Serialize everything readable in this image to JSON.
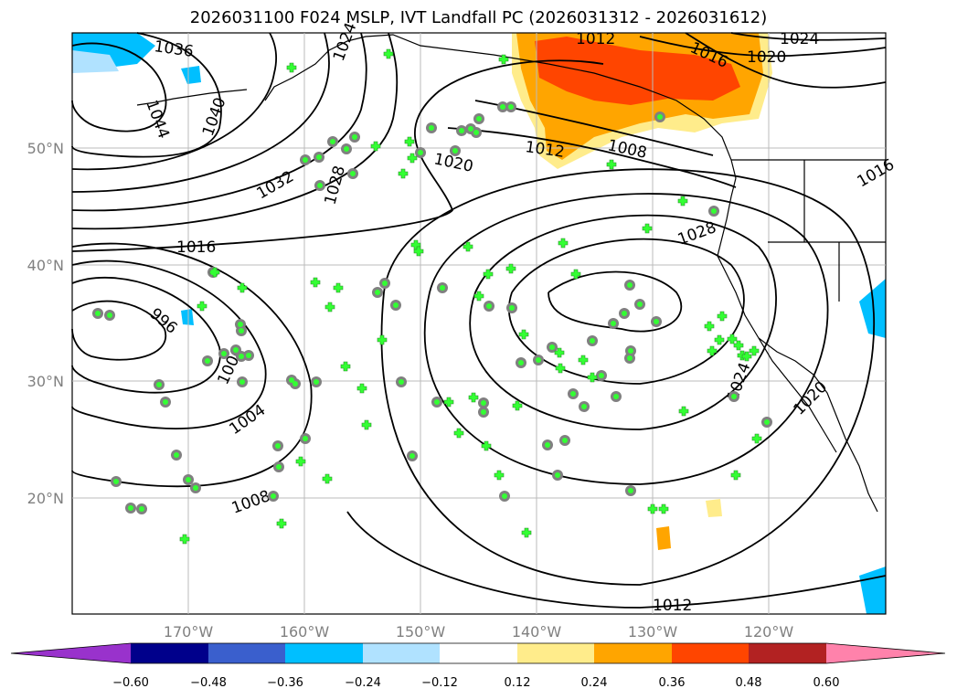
{
  "title": "2026031100 F024 MSLP, IVT Landfall PC (2026031312 - 2026031612)",
  "lat_ticks": [
    "50°N",
    "40°N",
    "30°N",
    "20°N"
  ],
  "lon_ticks": [
    "170°W",
    "160°W",
    "150°W",
    "140°W",
    "130°W",
    "120°W"
  ],
  "colorbar": {
    "ticks": [
      "−0.60",
      "−0.48",
      "−0.36",
      "−0.24",
      "−0.12",
      "0.12",
      "0.24",
      "0.36",
      "0.48",
      "0.60"
    ],
    "colors": [
      "#9932cc",
      "#00008b",
      "#3a5fcd",
      "#00bfff",
      "#b0e2ff",
      "#ffffff",
      "#ffec8b",
      "#ffa500",
      "#ff4500",
      "#b22222",
      "#ff82ab"
    ]
  },
  "isobar_labels": [
    "1036",
    "1044",
    "1040",
    "1024",
    "1032",
    "1028",
    "1016",
    "996",
    "1000",
    "1004",
    "1008",
    "1020",
    "1012",
    "1008",
    "1016",
    "1020",
    "1024",
    "1012",
    "1028",
    "1024",
    "1020",
    "1012",
    "1016"
  ],
  "colors": {
    "land_line": "#000000",
    "grid": "#bbbbbb",
    "marker_fill": "#33ff33",
    "marker_edge": "#808080"
  }
}
